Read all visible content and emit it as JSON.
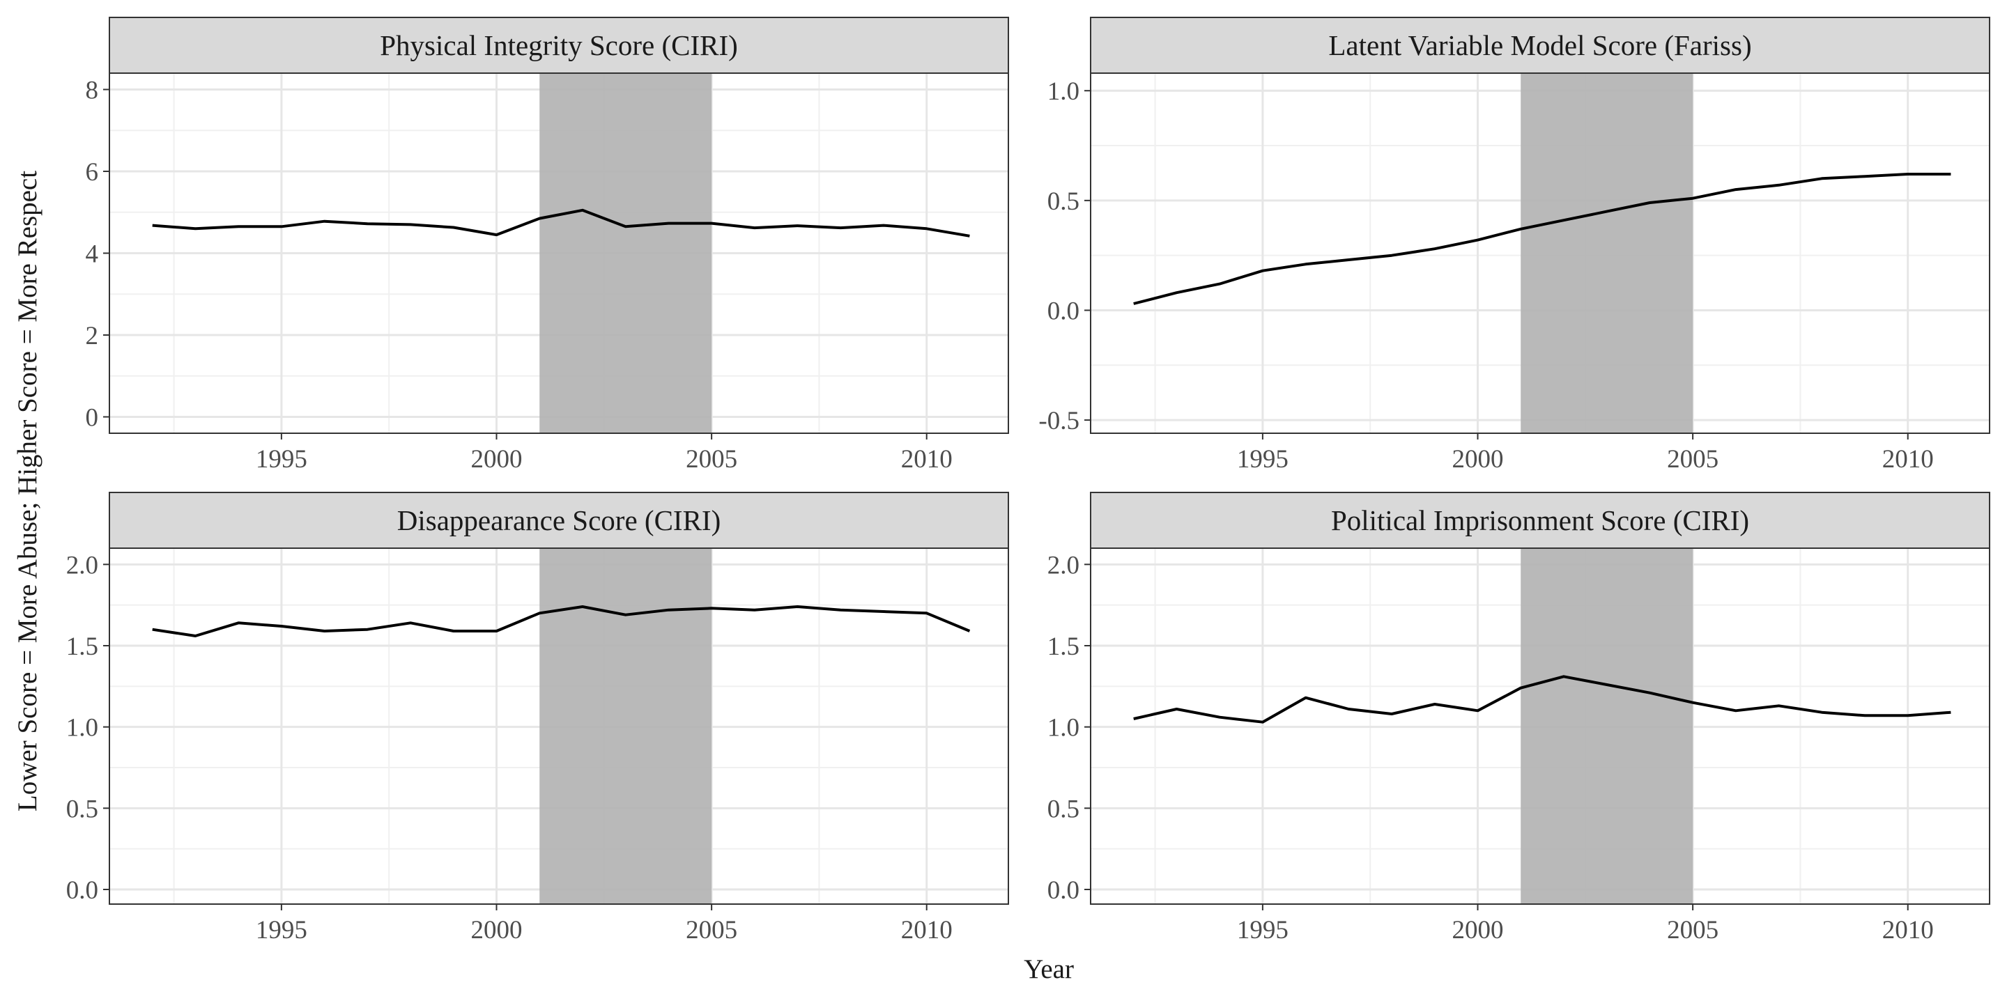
{
  "chart_data": {
    "type": "line",
    "layout": "facet-2x2",
    "title": "",
    "xlabel": "Year",
    "ylabel": "Lower Score = More Abuse; Higher Score = More Respect",
    "grid": true,
    "shaded_period": {
      "x_start": 2001,
      "x_end": 2005,
      "color": "#b3b3b3"
    },
    "line_color": "#000000",
    "x": [
      1992,
      1993,
      1994,
      1995,
      1996,
      1997,
      1998,
      1999,
      2000,
      2001,
      2002,
      2003,
      2004,
      2005,
      2006,
      2007,
      2008,
      2009,
      2010,
      2011
    ],
    "xlim": [
      1991.0,
      2011.9
    ],
    "xticks": [
      1995,
      2000,
      2005,
      2010
    ],
    "panels": [
      {
        "title": "Physical Integrity Score (CIRI)",
        "ylim": [
          -0.4,
          8.4
        ],
        "yticks": [
          0,
          2,
          4,
          6,
          8
        ],
        "ytick_labels": [
          "0",
          "2",
          "4",
          "6",
          "8"
        ],
        "values": [
          4.68,
          4.6,
          4.65,
          4.65,
          4.78,
          4.72,
          4.7,
          4.63,
          4.45,
          4.85,
          5.05,
          4.65,
          4.73,
          4.73,
          4.62,
          4.67,
          4.62,
          4.68,
          4.6,
          4.42
        ]
      },
      {
        "title": "Latent Variable Model Score (Fariss)",
        "ylim": [
          -0.56,
          1.08
        ],
        "yticks": [
          -0.5,
          0.0,
          0.5,
          1.0
        ],
        "ytick_labels": [
          "-0.5",
          "0.0",
          "0.5",
          "1.0"
        ],
        "values": [
          0.03,
          0.08,
          0.12,
          0.18,
          0.21,
          0.23,
          0.25,
          0.28,
          0.32,
          0.37,
          0.41,
          0.45,
          0.49,
          0.51,
          0.55,
          0.57,
          0.6,
          0.61,
          0.62,
          0.62
        ]
      },
      {
        "title": "Disappearance Score (CIRI)",
        "ylim": [
          -0.09,
          2.1
        ],
        "yticks": [
          0.0,
          0.5,
          1.0,
          1.5,
          2.0
        ],
        "ytick_labels": [
          "0.0",
          "0.5",
          "1.0",
          "1.5",
          "2.0"
        ],
        "values": [
          1.6,
          1.56,
          1.64,
          1.62,
          1.59,
          1.6,
          1.64,
          1.59,
          1.59,
          1.7,
          1.74,
          1.69,
          1.72,
          1.73,
          1.72,
          1.74,
          1.72,
          1.71,
          1.7,
          1.59
        ]
      },
      {
        "title": "Political Imprisonment Score (CIRI)",
        "ylim": [
          -0.09,
          2.1
        ],
        "yticks": [
          0.0,
          0.5,
          1.0,
          1.5,
          2.0
        ],
        "ytick_labels": [
          "0.0",
          "0.5",
          "1.0",
          "1.5",
          "2.0"
        ],
        "values": [
          1.05,
          1.11,
          1.06,
          1.03,
          1.18,
          1.11,
          1.08,
          1.14,
          1.1,
          1.24,
          1.31,
          1.26,
          1.21,
          1.15,
          1.1,
          1.13,
          1.09,
          1.07,
          1.07,
          1.09
        ]
      }
    ]
  }
}
